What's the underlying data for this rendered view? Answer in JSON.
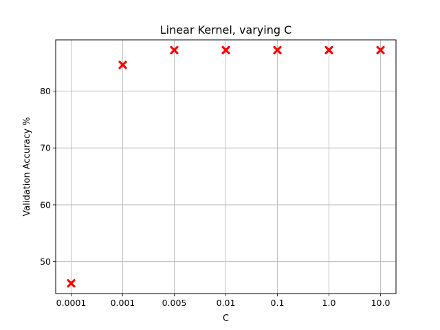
{
  "chart_data": {
    "type": "scatter",
    "title": "Linear Kernel, varying C",
    "xlabel": "C",
    "ylabel": "Validation Accuracy %",
    "categories": [
      "0.0001",
      "0.001",
      "0.005",
      "0.01",
      "0.1",
      "1.0",
      "10.0"
    ],
    "values": [
      46.2,
      84.6,
      87.2,
      87.2,
      87.2,
      87.2,
      87.2
    ],
    "yticks": [
      50,
      60,
      70,
      80
    ],
    "ylim": [
      44.4,
      89.0
    ],
    "grid": true,
    "marker": "X",
    "marker_color": "#ff0000"
  }
}
